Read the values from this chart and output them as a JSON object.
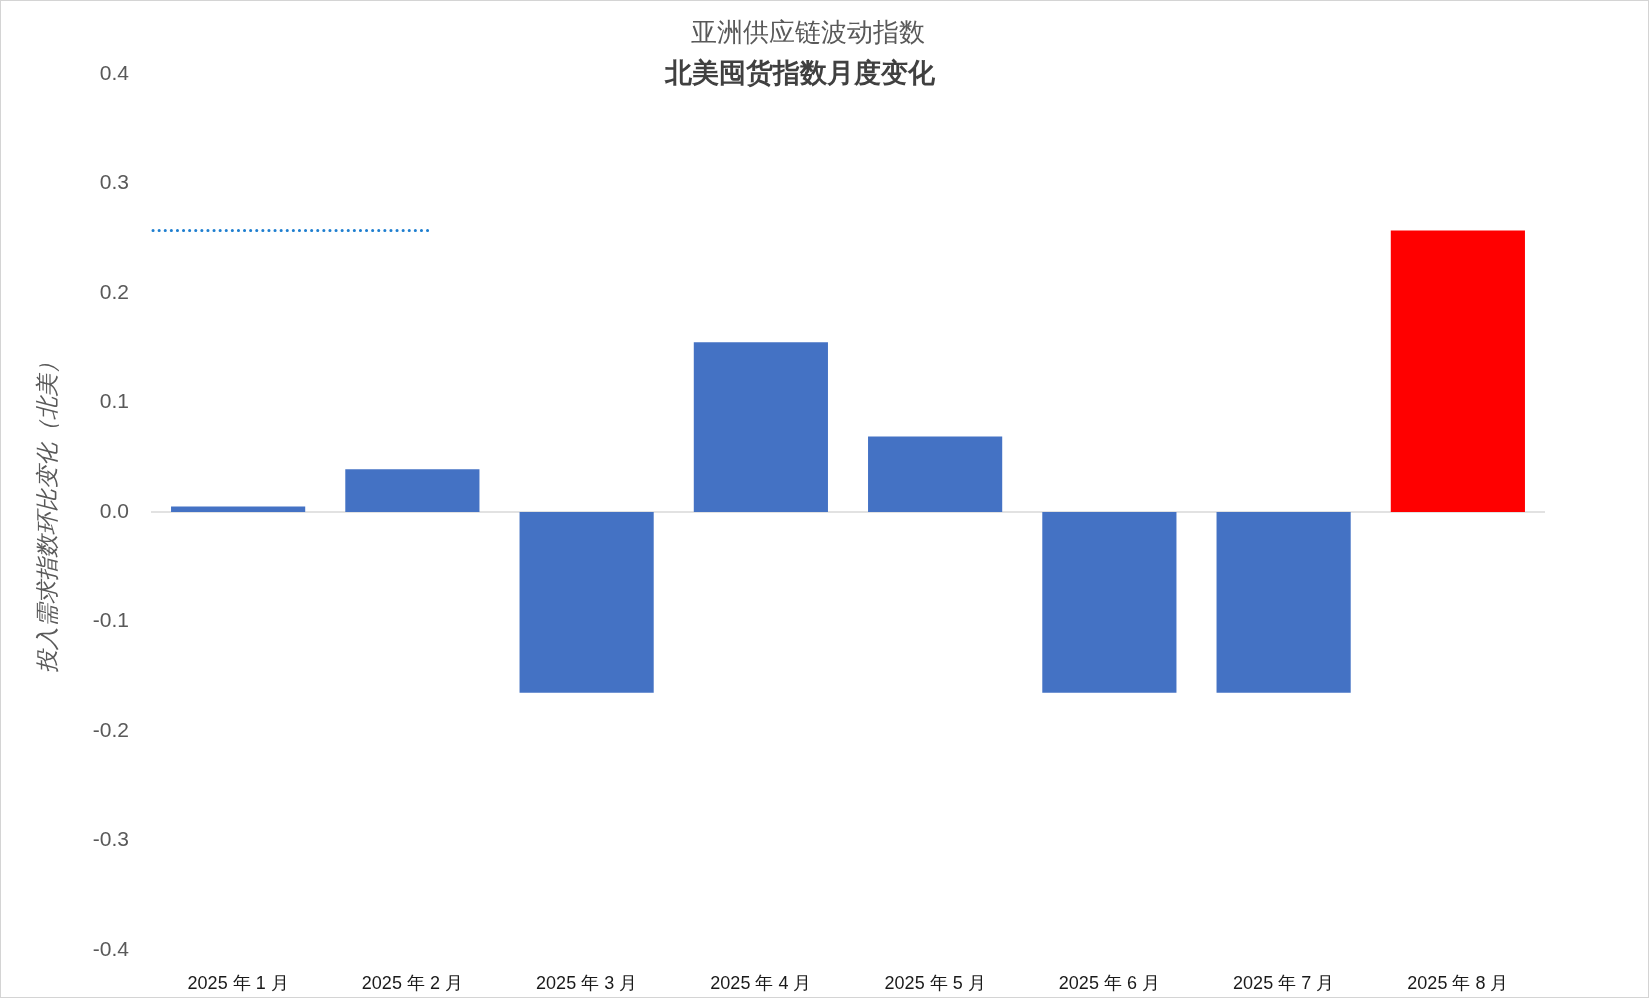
{
  "chart_data": {
    "type": "bar",
    "title": "亚洲供应链波动指数",
    "subtitle": "北美囤货指数月度变化",
    "ylabel": "投入需求指数环比变化（北美）",
    "categories": [
      "2025 年 1 月",
      "2025 年 2 月",
      "2025 年 3 月",
      "2025 年 4 月",
      "2025 年 5 月",
      "2025 年 6 月",
      "2025 年 7 月",
      "2025 年 8 月"
    ],
    "values": [
      0.005,
      0.039,
      -0.165,
      0.155,
      0.069,
      -0.165,
      -0.165,
      0.257
    ],
    "colors": [
      "#4472c4",
      "#4472c4",
      "#4472c4",
      "#4472c4",
      "#4472c4",
      "#4472c4",
      "#4472c4",
      "#ff0000"
    ],
    "ylim": [
      -0.4,
      0.4
    ],
    "yticks": [
      -0.4,
      -0.3,
      -0.2,
      -0.1,
      {
        "value": 0,
        "label": "0.0"
      },
      0.1,
      0.2,
      0.3,
      0.4
    ],
    "grid": false,
    "legend": false,
    "ref_lines": [
      {
        "axis": "y",
        "value": 0.257,
        "color": "#1f7fd0",
        "line_style": "dotted"
      },
      {
        "axis": "y",
        "value": 0,
        "color": "#d9d9d9",
        "line_style": "solid"
      }
    ]
  }
}
